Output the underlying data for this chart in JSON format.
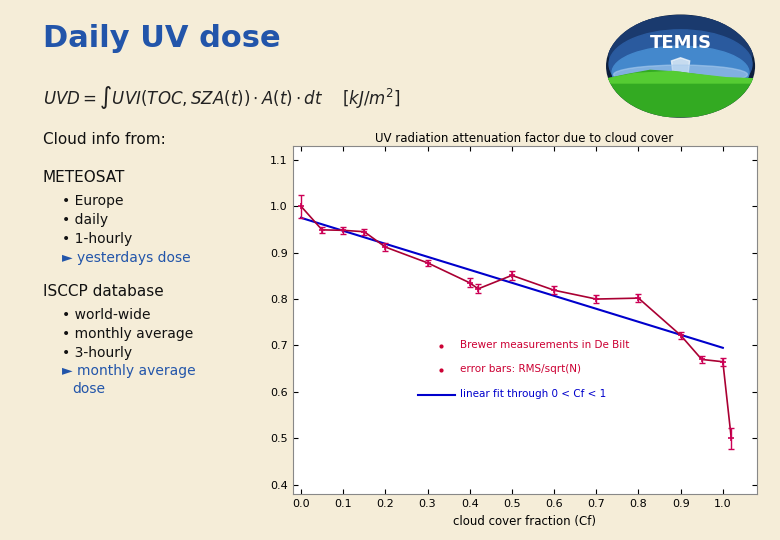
{
  "bg_color": "#f5edd8",
  "title_text": "Daily UV dose",
  "title_color": "#2255aa",
  "formula_color": "#222222",
  "cloud_info_title": "Cloud info from:",
  "meteosat_title": "METEOSAT",
  "meteosat_items": [
    "Europe",
    "daily",
    "1-hourly"
  ],
  "meteosat_arrow": "yesterdays dose",
  "isccp_title": "ISCCP database",
  "isccp_items": [
    "world-wide",
    "monthly average",
    "3-hourly"
  ],
  "isccp_arrow1": "monthly average",
  "isccp_arrow2": "dose",
  "arrow_color": "#2255aa",
  "plot_title": "UV radiation attenuation factor due to cloud cover",
  "xlabel": "cloud cover fraction (Cf)",
  "xlim": [
    -0.02,
    1.08
  ],
  "ylim": [
    0.38,
    1.13
  ],
  "xticks": [
    0.0,
    0.1,
    0.2,
    0.3,
    0.4,
    0.5,
    0.6,
    0.7,
    0.8,
    0.9,
    1.0
  ],
  "yticks": [
    0.4,
    0.5,
    0.6,
    0.7,
    0.8,
    0.9,
    1.0,
    1.1
  ],
  "data_x": [
    0.0,
    0.05,
    0.1,
    0.15,
    0.2,
    0.3,
    0.4,
    0.42,
    0.5,
    0.6,
    0.7,
    0.8,
    0.9,
    0.95,
    1.0,
    1.02
  ],
  "data_y": [
    1.0,
    0.949,
    0.948,
    0.945,
    0.912,
    0.878,
    0.835,
    0.822,
    0.851,
    0.819,
    0.8,
    0.802,
    0.722,
    0.67,
    0.665,
    0.5
  ],
  "data_yerr": [
    0.025,
    0.007,
    0.007,
    0.006,
    0.009,
    0.007,
    0.01,
    0.01,
    0.009,
    0.009,
    0.009,
    0.009,
    0.008,
    0.008,
    0.009,
    0.022
  ],
  "data_color": "#cc0055",
  "line_color": "#aa0033",
  "fit_x": [
    0.0,
    1.0
  ],
  "fit_y": [
    0.975,
    0.695
  ],
  "fit_color": "#0000cc",
  "legend_brewer": "Brewer measurements in De Bilt",
  "legend_error": "error bars: RMS/sqrt(N)",
  "legend_fit": "linear fit through 0 < Cf < 1",
  "legend_color_data": "#cc0033",
  "legend_color_fit": "#0000cc"
}
